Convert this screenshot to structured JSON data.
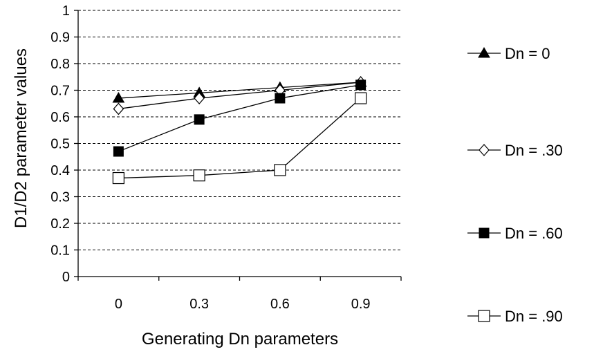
{
  "chart_data": {
    "type": "line",
    "xlabel": "Generating Dn parameters",
    "ylabel": "D1/D2 parameter values",
    "categories": [
      "0",
      "0.3",
      "0.6",
      "0.9"
    ],
    "y_ticks": [
      "0",
      "0.1",
      "0.2",
      "0.3",
      "0.4",
      "0.5",
      "0.6",
      "0.7",
      "0.8",
      "0.9",
      "1"
    ],
    "ylim": [
      0,
      1
    ],
    "grid": "horizontal dashed",
    "legend_position": "right",
    "series": [
      {
        "name": "Dn = 0",
        "marker": "triangle-filled",
        "values": [
          0.67,
          0.69,
          0.71,
          0.73
        ]
      },
      {
        "name": "Dn = .30",
        "marker": "diamond-open",
        "values": [
          0.63,
          0.67,
          0.7,
          0.73
        ]
      },
      {
        "name": "Dn = .60",
        "marker": "square-filled",
        "values": [
          0.47,
          0.59,
          0.67,
          0.72
        ]
      },
      {
        "name": "Dn = .90",
        "marker": "square-open",
        "values": [
          0.37,
          0.38,
          0.4,
          0.67
        ]
      }
    ]
  }
}
